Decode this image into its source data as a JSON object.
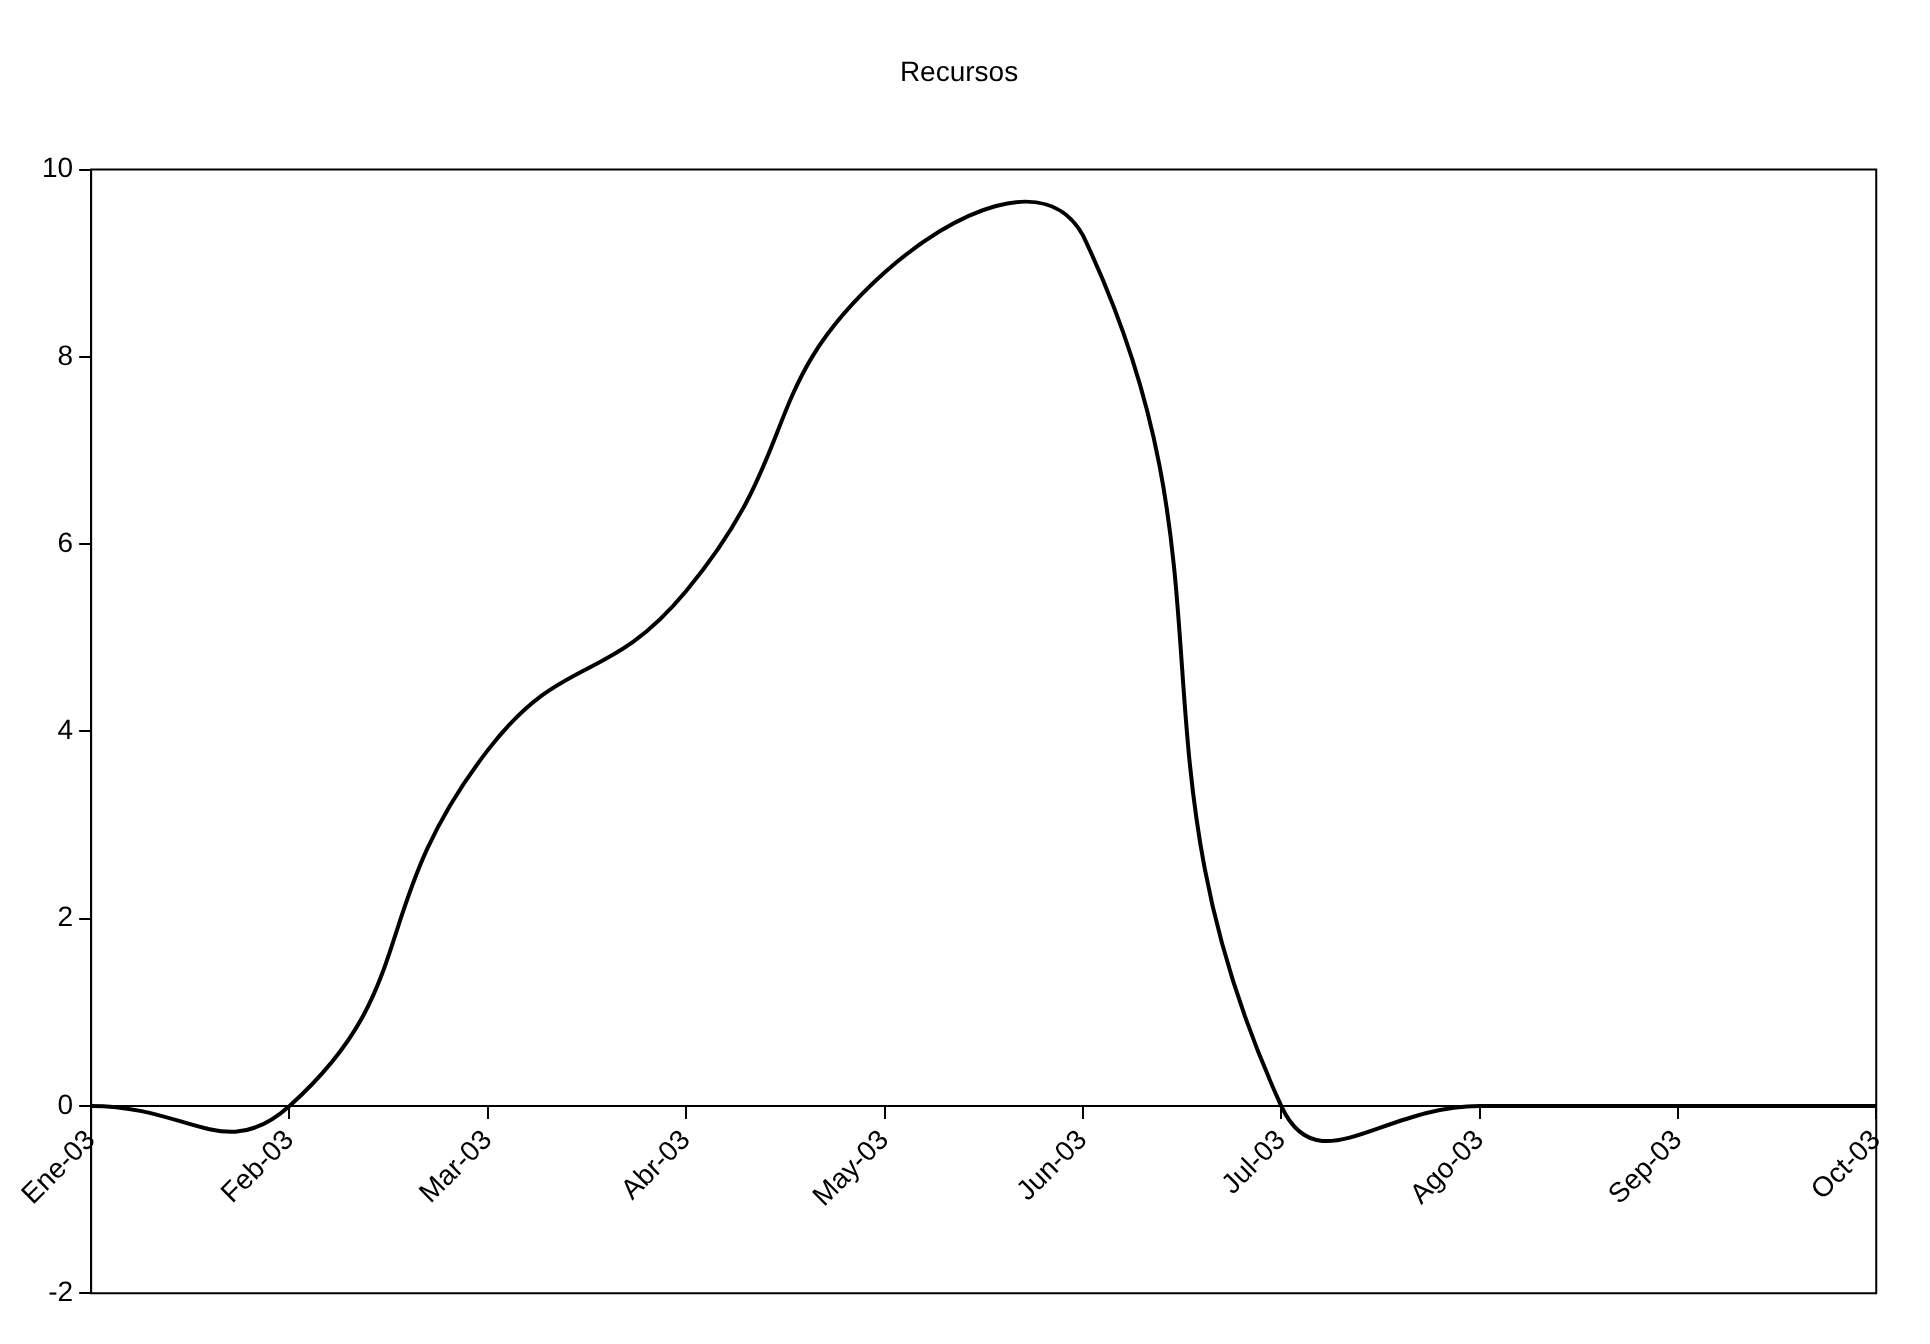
{
  "chart_data": {
    "type": "line",
    "title": "Recursos",
    "categories": [
      "Ene-03",
      "Feb-03",
      "Mar-03",
      "Abr-03",
      "May-03",
      "Jun-03",
      "Jul-03",
      "Ago-03",
      "Sep-03",
      "Oct-03"
    ],
    "series": [
      {
        "color": "#000000",
        "values": [
          0,
          0,
          3.8,
          5.5,
          8.9,
          9.3,
          0,
          0,
          0,
          0
        ]
      }
    ],
    "ylim": [
      -2,
      10
    ],
    "yticks": [
      -2,
      0,
      2,
      4,
      6,
      8,
      10
    ],
    "grid": false,
    "legend": false,
    "marker": "none",
    "line_style": "solid"
  }
}
